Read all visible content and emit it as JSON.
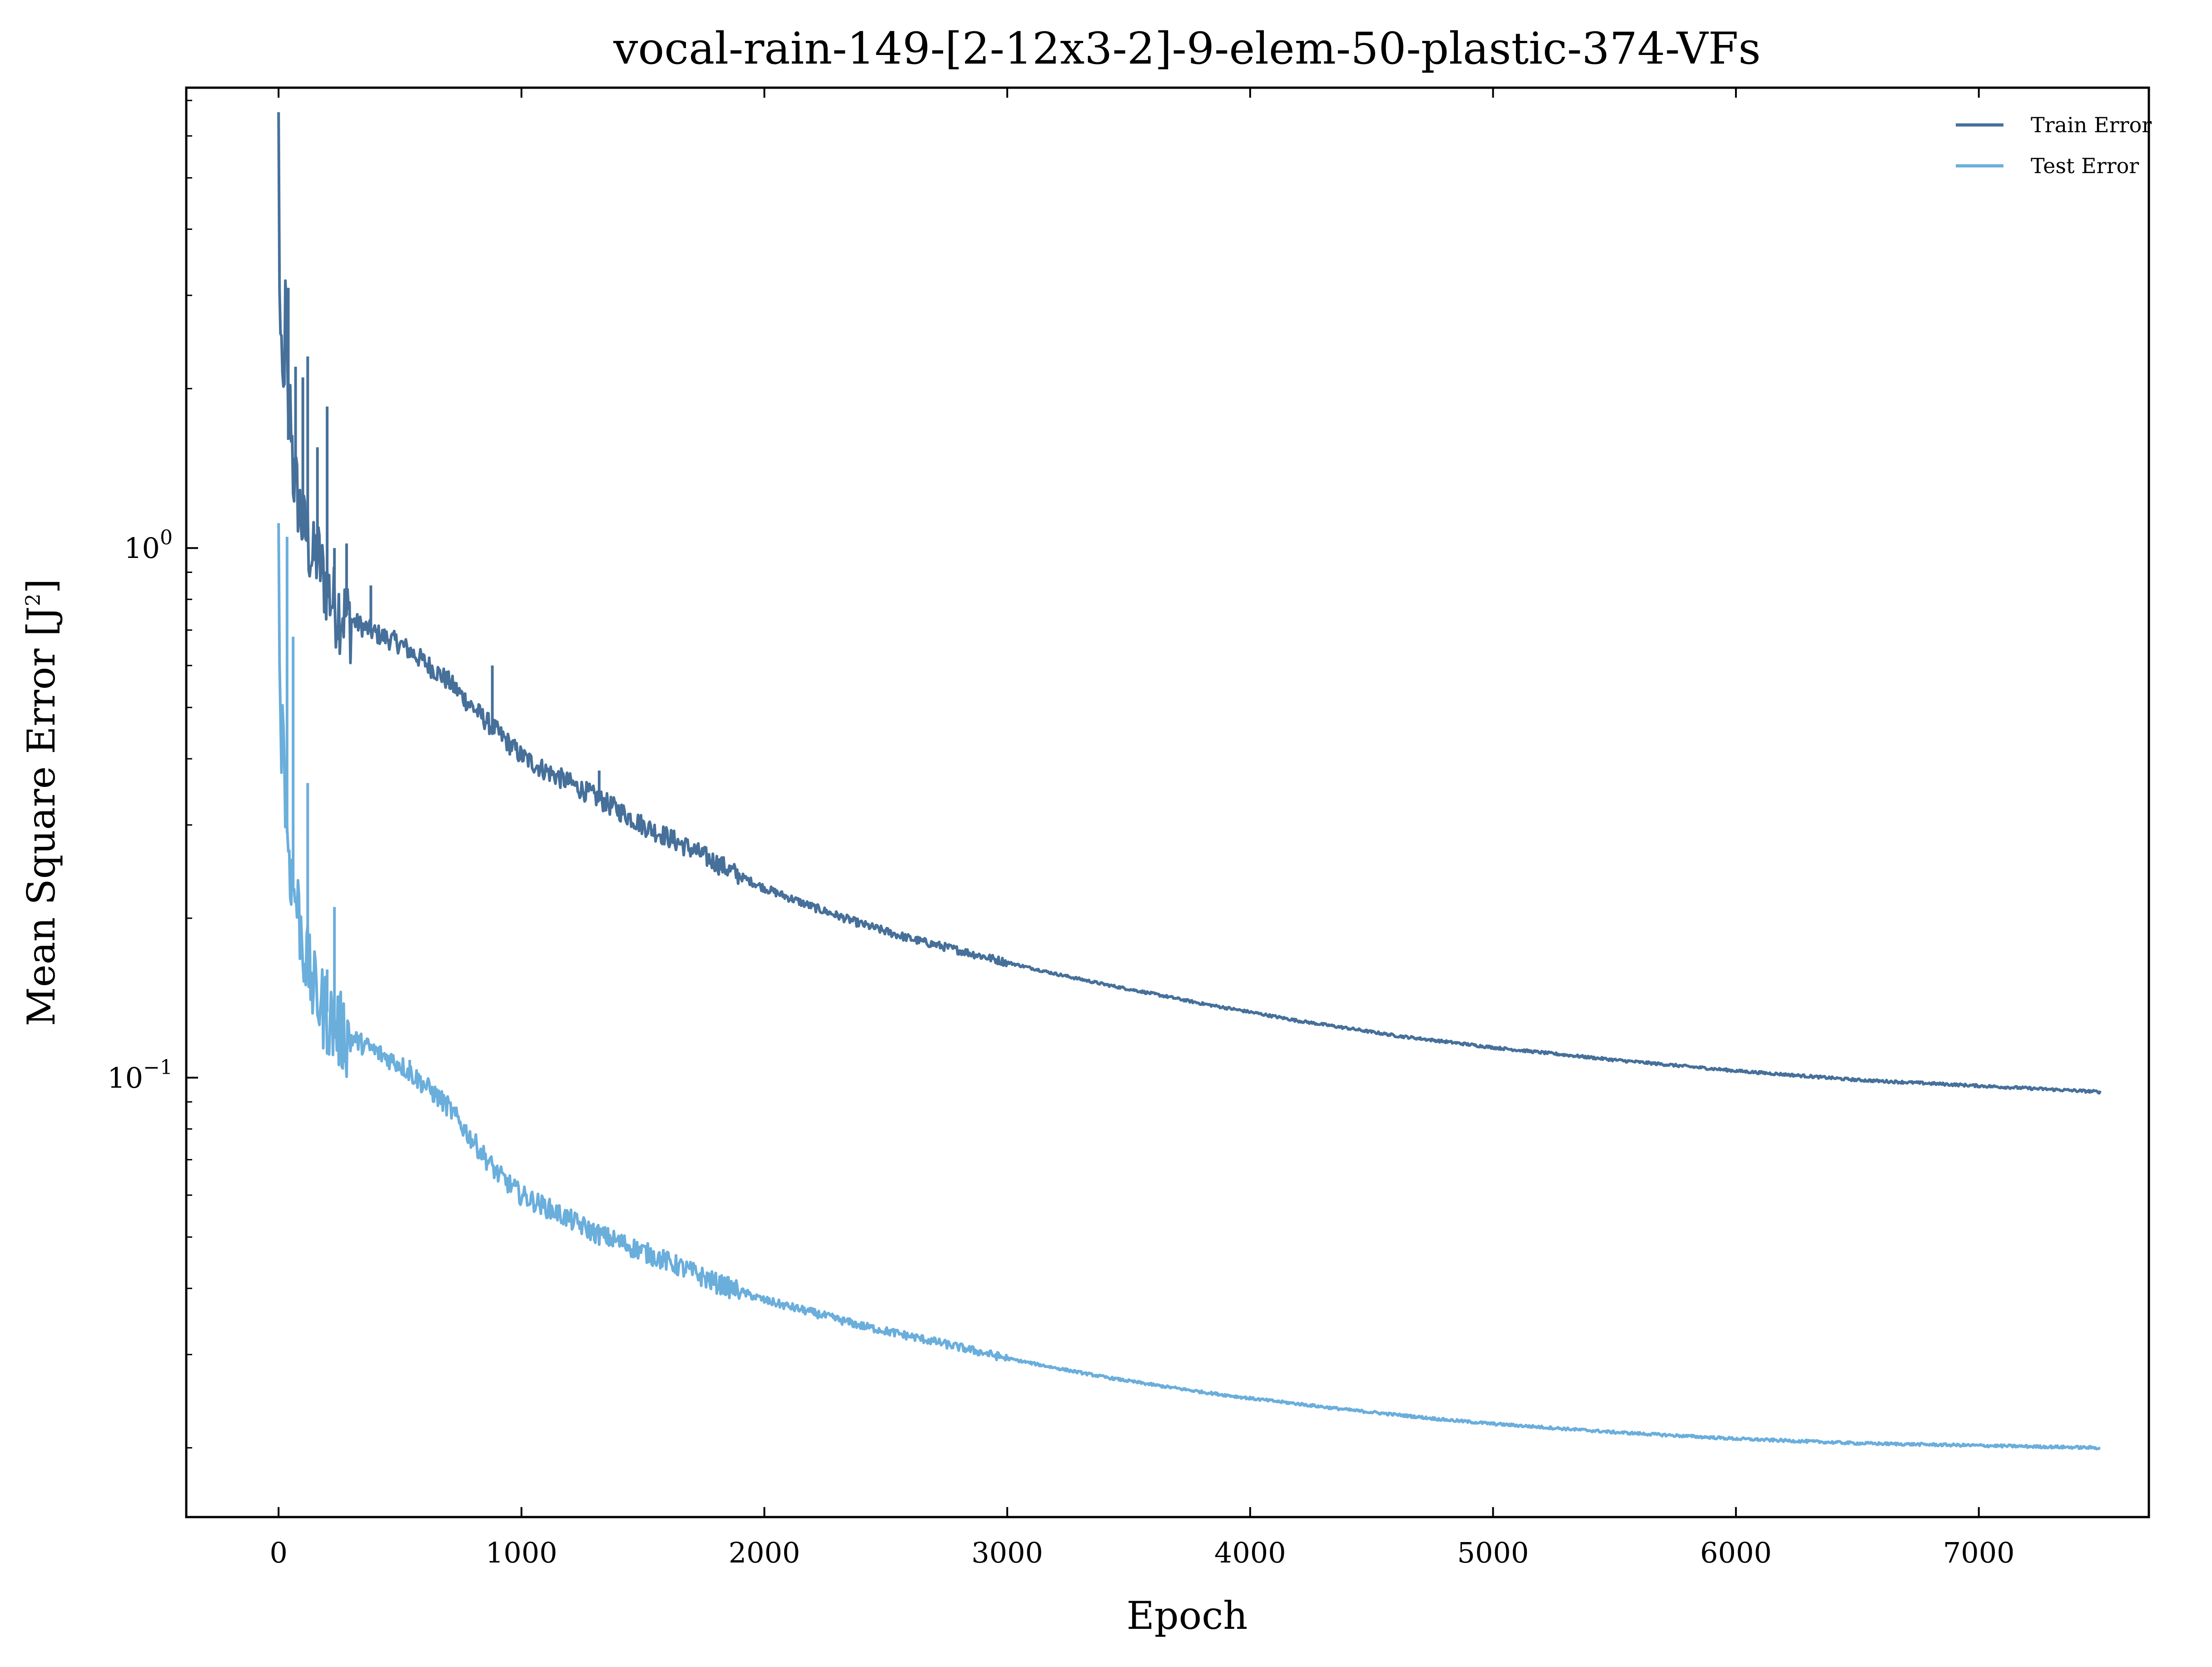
{
  "chart_data": {
    "type": "line",
    "title": "vocal-rain-149-[2-12x3-2]-9-elem-50-plastic-374-VFs",
    "xlabel": "Epoch",
    "ylabel": "Mean Square Error [J",
    "ylabel_sup": "2",
    "ylabel_close": "]",
    "xlim": [
      -380,
      7700
    ],
    "ylim": [
      0.0148,
      7.4
    ],
    "yscale": "log",
    "grid": false,
    "legend": "top-right",
    "x_ticks": [
      {
        "value": 0,
        "label": "0"
      },
      {
        "value": 1000,
        "label": "1000"
      },
      {
        "value": 2000,
        "label": "2000"
      },
      {
        "value": 3000,
        "label": "3000"
      },
      {
        "value": 4000,
        "label": "4000"
      },
      {
        "value": 5000,
        "label": "5000"
      },
      {
        "value": 6000,
        "label": "6000"
      },
      {
        "value": 7000,
        "label": "7000"
      }
    ],
    "y_ticks": [
      {
        "value": 1,
        "base": "10",
        "exp": "0"
      },
      {
        "value": 0.1,
        "base": "10",
        "exp": "−1"
      }
    ],
    "series": [
      {
        "name": "Train Error",
        "color": "#46709a",
        "x": [
          0,
          5,
          10,
          20,
          30,
          40,
          50,
          60,
          80,
          100,
          120,
          140,
          160,
          180,
          200,
          220,
          250,
          300,
          400,
          500,
          600,
          700,
          800,
          900,
          1000,
          1100,
          1200,
          1300,
          1400,
          1500,
          1600,
          1700,
          1800,
          1900,
          2000,
          2200,
          2400,
          2600,
          2800,
          3000,
          3200,
          3400,
          3600,
          3800,
          4000,
          4200,
          4400,
          4600,
          4800,
          5000,
          5500,
          6000,
          6500,
          7000,
          7500
        ],
        "y": [
          6.3,
          2.8,
          2.2,
          1.9,
          3.1,
          1.6,
          1.9,
          1.4,
          1.25,
          1.1,
          1.05,
          0.95,
          0.98,
          0.9,
          0.85,
          0.8,
          0.77,
          0.73,
          0.69,
          0.66,
          0.61,
          0.56,
          0.5,
          0.45,
          0.405,
          0.38,
          0.36,
          0.34,
          0.32,
          0.3,
          0.285,
          0.27,
          0.255,
          0.24,
          0.228,
          0.21,
          0.195,
          0.183,
          0.174,
          0.165,
          0.157,
          0.15,
          0.144,
          0.138,
          0.133,
          0.128,
          0.124,
          0.12,
          0.117,
          0.114,
          0.108,
          0.103,
          0.099,
          0.0965,
          0.094
        ],
        "spikes": [
          {
            "x": 40,
            "y": 3.1
          },
          {
            "x": 70,
            "y": 2.2
          },
          {
            "x": 100,
            "y": 2.1
          },
          {
            "x": 120,
            "y": 2.3
          },
          {
            "x": 160,
            "y": 1.55
          },
          {
            "x": 200,
            "y": 1.85
          },
          {
            "x": 230,
            "y": 1.0
          },
          {
            "x": 280,
            "y": 1.02
          },
          {
            "x": 380,
            "y": 0.85
          },
          {
            "x": 880,
            "y": 0.6
          },
          {
            "x": 1320,
            "y": 0.38
          }
        ]
      },
      {
        "name": "Test Error",
        "color": "#6aaedc",
        "x": [
          0,
          5,
          10,
          20,
          30,
          40,
          50,
          60,
          80,
          100,
          120,
          140,
          160,
          180,
          200,
          220,
          250,
          300,
          400,
          500,
          600,
          700,
          800,
          900,
          1000,
          1100,
          1200,
          1300,
          1400,
          1500,
          1600,
          1700,
          1800,
          1900,
          2000,
          2200,
          2400,
          2600,
          2800,
          3000,
          3200,
          3400,
          3600,
          3800,
          4000,
          4200,
          4400,
          4600,
          4800,
          5000,
          5500,
          6000,
          6500,
          7000,
          7500
        ],
        "y": [
          1.2,
          0.52,
          0.45,
          0.48,
          0.3,
          0.28,
          0.25,
          0.23,
          0.21,
          0.18,
          0.165,
          0.15,
          0.142,
          0.138,
          0.133,
          0.128,
          0.124,
          0.119,
          0.112,
          0.106,
          0.097,
          0.088,
          0.076,
          0.066,
          0.06,
          0.057,
          0.054,
          0.051,
          0.049,
          0.047,
          0.045,
          0.043,
          0.041,
          0.0395,
          0.038,
          0.036,
          0.034,
          0.0325,
          0.031,
          0.0295,
          0.0283,
          0.0272,
          0.0263,
          0.0255,
          0.0248,
          0.0242,
          0.0236,
          0.0231,
          0.0226,
          0.0222,
          0.0214,
          0.0208,
          0.0204,
          0.0202,
          0.02
        ],
        "spikes": [
          {
            "x": 35,
            "y": 1.05
          },
          {
            "x": 60,
            "y": 0.68
          },
          {
            "x": 120,
            "y": 0.36
          },
          {
            "x": 230,
            "y": 0.21
          },
          {
            "x": 200,
            "y": 0.16
          },
          {
            "x": 540,
            "y": 0.108
          }
        ]
      }
    ]
  }
}
